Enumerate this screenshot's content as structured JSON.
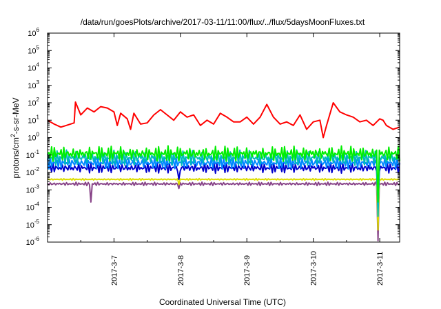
{
  "chart_data": {
    "type": "line",
    "title": "/data/run/goesPlots/archive/2017-03-11/11:00/flux/../flux/5daysMoonFluxes.txt",
    "xlabel": "Coordinated Universal Time (UTC)",
    "ylabel_main": "protons/cm",
    "ylabel_sup": "2",
    "ylabel_rest": "-s-sr-MeV",
    "yscale": "log",
    "ylim": [
      1e-06,
      1000000.0
    ],
    "xlim": [
      0,
      5.3
    ],
    "y_ticks": [
      {
        "value": 1e-06,
        "base": "10",
        "exp": "-6"
      },
      {
        "value": 1e-05,
        "base": "10",
        "exp": "-5"
      },
      {
        "value": 0.0001,
        "base": "10",
        "exp": "-4"
      },
      {
        "value": 0.001,
        "base": "10",
        "exp": "-3"
      },
      {
        "value": 0.01,
        "base": "10",
        "exp": "-2"
      },
      {
        "value": 0.1,
        "base": "10",
        "exp": "-1"
      },
      {
        "value": 1.0,
        "base": "10",
        "exp": "0"
      },
      {
        "value": 10.0,
        "base": "10",
        "exp": "1"
      },
      {
        "value": 100.0,
        "base": "10",
        "exp": "2"
      },
      {
        "value": 1000.0,
        "base": "10",
        "exp": "3"
      },
      {
        "value": 10000.0,
        "base": "10",
        "exp": "4"
      },
      {
        "value": 100000.0,
        "base": "10",
        "exp": "5"
      },
      {
        "value": 1000000.0,
        "base": "10",
        "exp": "6"
      }
    ],
    "x_ticks": [
      {
        "value": 1,
        "label": "2017-3-7"
      },
      {
        "value": 2,
        "label": "2017-3-8"
      },
      {
        "value": 3,
        "label": "2017-3-9"
      },
      {
        "value": 4,
        "label": "2017-3-10"
      },
      {
        "value": 5,
        "label": "2017-3-11"
      }
    ],
    "grid": false,
    "legend": "none",
    "series": [
      {
        "color": "#ff0000",
        "x": [
          0.0,
          0.1,
          0.2,
          0.28,
          0.4,
          0.42,
          0.5,
          0.6,
          0.7,
          0.8,
          0.9,
          1.0,
          1.05,
          1.1,
          1.2,
          1.25,
          1.3,
          1.4,
          1.5,
          1.6,
          1.7,
          1.8,
          1.9,
          2.0,
          2.1,
          2.2,
          2.3,
          2.4,
          2.5,
          2.6,
          2.7,
          2.8,
          2.9,
          3.0,
          3.1,
          3.2,
          3.3,
          3.4,
          3.5,
          3.6,
          3.7,
          3.8,
          3.9,
          4.0,
          4.1,
          4.15,
          4.2,
          4.3,
          4.4,
          4.5,
          4.6,
          4.7,
          4.8,
          4.9,
          5.0,
          5.05,
          5.1,
          5.2,
          5.3
        ],
        "y": [
          10,
          6,
          4,
          5,
          7,
          110,
          20,
          50,
          30,
          60,
          50,
          30,
          5,
          25,
          12,
          3,
          25,
          6,
          7,
          20,
          40,
          20,
          10,
          30,
          15,
          20,
          5,
          10,
          6,
          25,
          15,
          8,
          8,
          15,
          6,
          15,
          80,
          15,
          6,
          8,
          5,
          20,
          3,
          8,
          10,
          1,
          5,
          100,
          30,
          20,
          15,
          8,
          10,
          5,
          12,
          10,
          5,
          3,
          4
        ]
      },
      {
        "color": "#00ee00",
        "base": 0.12,
        "amp": 0.45,
        "phase": 0.0
      },
      {
        "color": "#00bbbb",
        "base": 0.07,
        "amp": 0.45,
        "phase": 1.3
      },
      {
        "color": "#0088ff",
        "base": 0.035,
        "amp": 0.35,
        "phase": 2.1
      },
      {
        "color": "#0000cc",
        "base": 0.018,
        "amp": 0.3,
        "phase": 3.0
      },
      {
        "color": "#dddd00",
        "base": 0.004,
        "amp": 0.05,
        "phase": 0.5
      },
      {
        "color": "#884488",
        "base": 0.0022,
        "amp": 0.1,
        "phase": 1.7
      }
    ],
    "dips": [
      {
        "at": 0.66,
        "values": {
          "#884488": 0.0002
        }
      },
      {
        "at": 1.97,
        "values": {
          "#884488": 0.0012,
          "#dddd00": 0.002,
          "#0000cc": 0.004
        }
      },
      {
        "at": 4.98,
        "values": {
          "#884488": 1.2e-06,
          "#dddd00": 5e-06,
          "#00bbbb": 3e-05,
          "#0088ff": 8e-05,
          "#0000cc": 0.0001,
          "#00ee00": 0.0002
        }
      }
    ]
  }
}
